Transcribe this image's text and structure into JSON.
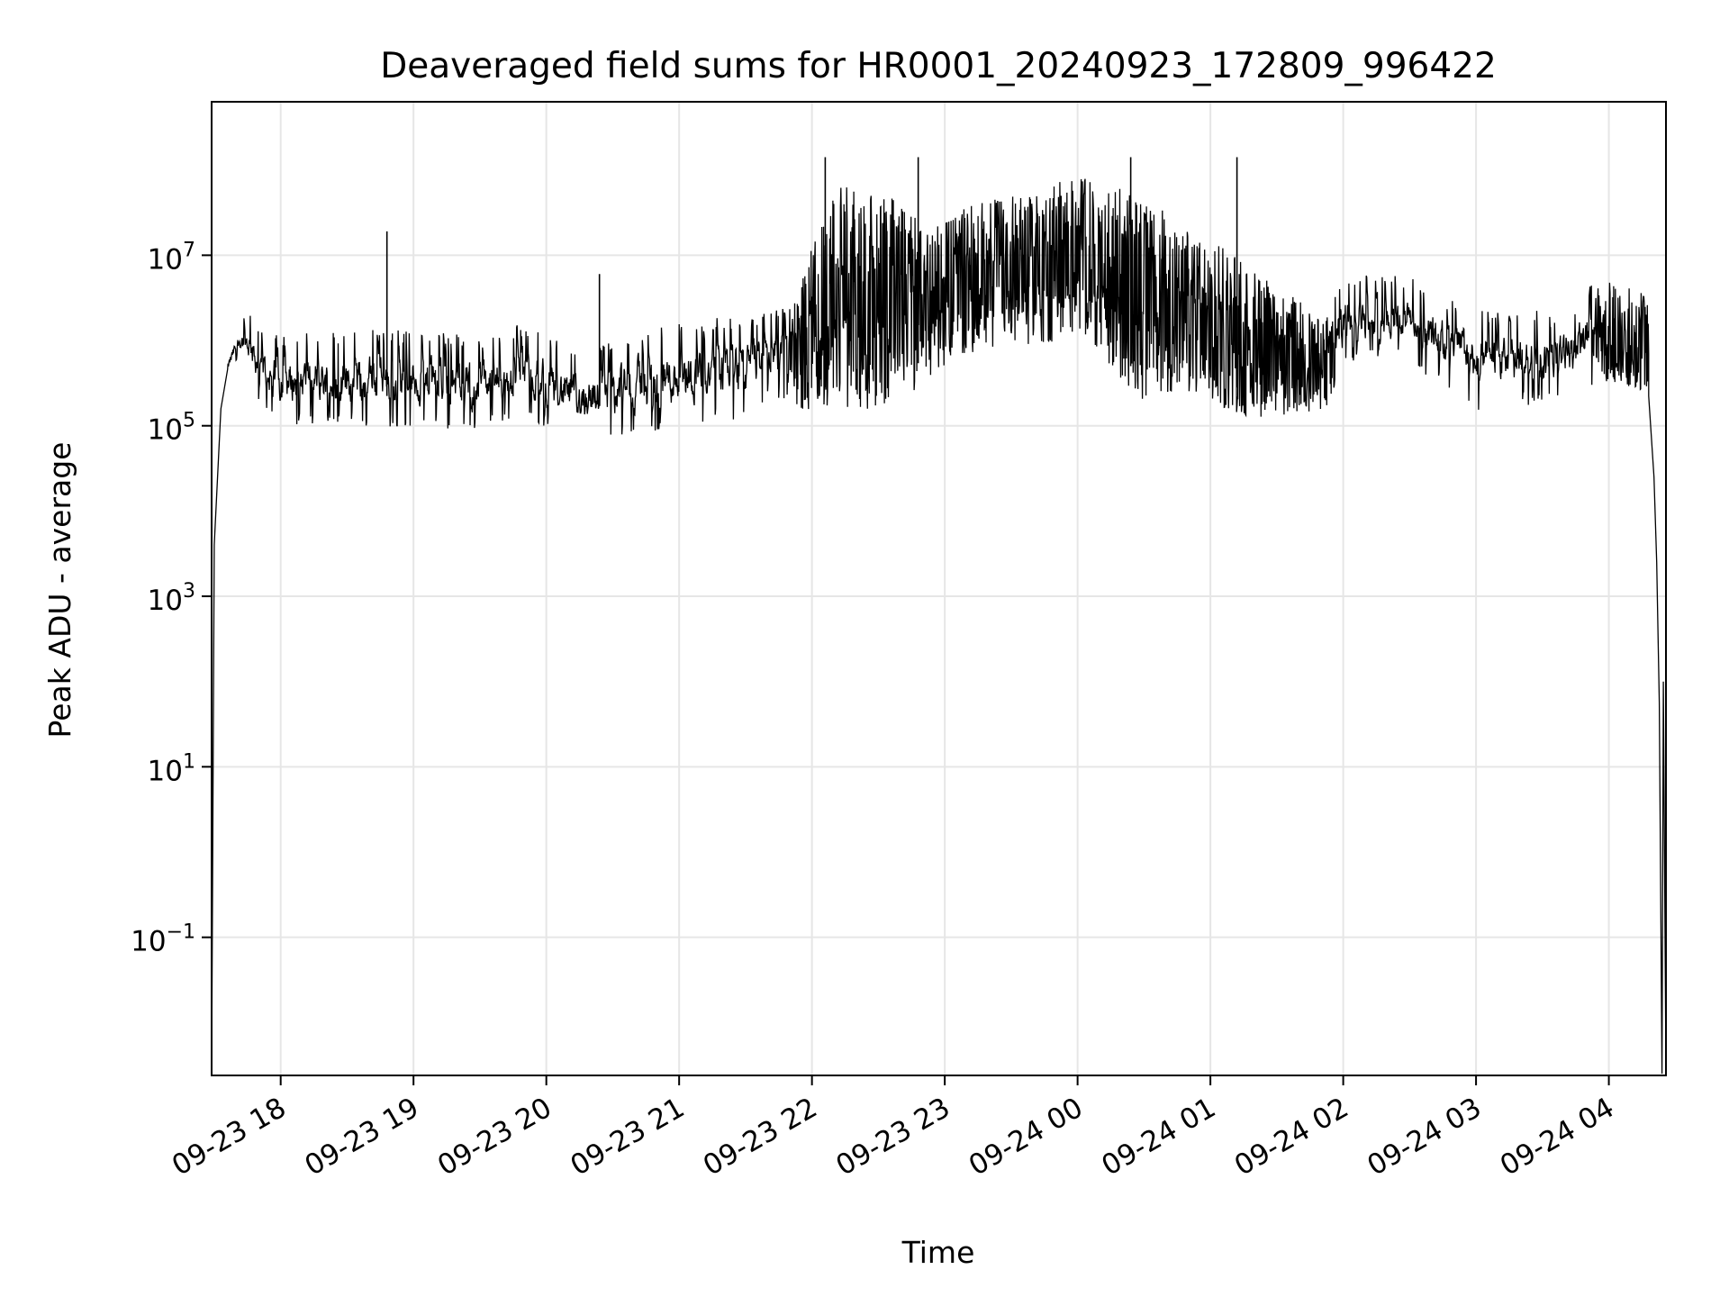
{
  "chart_data": {
    "type": "line",
    "title": "Deaveraged field sums for HR0001_20240923_172809_996422",
    "xlabel": "Time",
    "ylabel": "Peak ADU - average",
    "y_scale": "log",
    "grid": true,
    "line_color": "#000000",
    "grid_color": "#e6e6e6",
    "x_tick_labels": [
      "09-23 18",
      "09-23 19",
      "09-23 20",
      "09-23 21",
      "09-23 22",
      "09-23 23",
      "09-24 00",
      "09-24 01",
      "09-24 02",
      "09-24 03",
      "09-24 04"
    ],
    "x_tick_hours": [
      18,
      19,
      20,
      21,
      22,
      23,
      24,
      25,
      26,
      27,
      28
    ],
    "xlim_hours": [
      17.48,
      28.43
    ],
    "y_tick_exponents": [
      -1,
      1,
      3,
      5,
      7
    ],
    "y_tick_labels": [
      "10",
      "10",
      "10",
      "10",
      "10"
    ],
    "y_tick_superscripts": [
      "−1",
      "1",
      "3",
      "5",
      "7"
    ],
    "ylim_log10": [
      -2.62,
      8.8
    ],
    "envelope": {
      "hours": [
        17.6,
        17.68,
        17.75,
        17.85,
        18.0,
        18.2,
        18.5,
        18.8,
        19.0,
        19.2,
        19.5,
        19.7,
        19.8,
        20.0,
        20.2,
        20.4,
        20.6,
        20.8,
        21.0,
        21.2,
        21.5,
        21.7,
        21.85,
        22.0,
        22.2,
        22.5,
        22.7,
        22.85,
        23.0,
        23.2,
        23.5,
        23.7,
        23.9,
        24.1,
        24.3,
        24.5,
        24.7,
        24.9,
        25.1,
        25.3,
        25.5,
        25.7,
        25.9,
        26.0,
        26.2,
        26.5,
        26.7,
        26.9,
        27.0,
        27.2,
        27.5,
        27.7,
        27.9,
        28.0,
        28.2,
        28.3
      ],
      "low": [
        5.6,
        5.85,
        5.7,
        5.3,
        5.1,
        5.15,
        5.1,
        5.05,
        5.1,
        5.05,
        5.1,
        5.15,
        5.2,
        5.1,
        4.95,
        4.95,
        5.0,
        5.05,
        5.1,
        5.15,
        5.2,
        5.5,
        5.3,
        5.1,
        5.2,
        5.2,
        5.3,
        5.5,
        5.7,
        5.8,
        5.9,
        5.95,
        6.0,
        6.0,
        5.5,
        5.3,
        5.4,
        5.3,
        5.2,
        5.1,
        5.1,
        5.15,
        5.2,
        5.8,
        5.9,
        5.9,
        5.6,
        5.5,
        5.3,
        5.3,
        5.4,
        5.5,
        5.6,
        5.5,
        5.4,
        5.4
      ],
      "high": [
        5.8,
        6.15,
        6.25,
        6.0,
        5.9,
        5.95,
        5.95,
        6.0,
        5.95,
        5.95,
        5.9,
        5.95,
        6.05,
        5.95,
        5.7,
        5.8,
        5.95,
        6.0,
        6.05,
        6.1,
        6.15,
        6.2,
        6.4,
        7.1,
        7.8,
        7.8,
        7.6,
        7.3,
        7.4,
        7.6,
        7.7,
        7.7,
        7.9,
        7.9,
        7.8,
        7.6,
        7.5,
        7.3,
        7.1,
        6.9,
        6.6,
        6.5,
        6.3,
        6.6,
        6.7,
        6.6,
        6.4,
        6.3,
        6.2,
        6.2,
        6.2,
        6.2,
        6.6,
        6.7,
        6.6,
        6.5
      ]
    },
    "spikes": [
      {
        "hour": 18.8,
        "log10": 7.28
      },
      {
        "hour": 20.4,
        "log10": 6.78
      },
      {
        "hour": 22.1,
        "log10": 8.15
      },
      {
        "hour": 22.8,
        "log10": 8.15
      },
      {
        "hour": 24.4,
        "log10": 8.15
      },
      {
        "hour": 25.2,
        "log10": 8.15
      }
    ],
    "edges": [
      {
        "hour": 17.48,
        "log10": -2.6
      },
      {
        "hour": 17.5,
        "log10": 3.6
      },
      {
        "hour": 17.55,
        "log10": 5.2
      },
      {
        "hour": 28.3,
        "log10": 5.35
      },
      {
        "hour": 28.34,
        "log10": 4.4
      },
      {
        "hour": 28.36,
        "log10": 3.4
      },
      {
        "hour": 28.38,
        "log10": 1.75
      },
      {
        "hour": 28.4,
        "log10": -2.6
      },
      {
        "hour": 28.41,
        "log10": 2.0
      },
      {
        "hour": 28.43,
        "log10": -2.6
      }
    ]
  }
}
